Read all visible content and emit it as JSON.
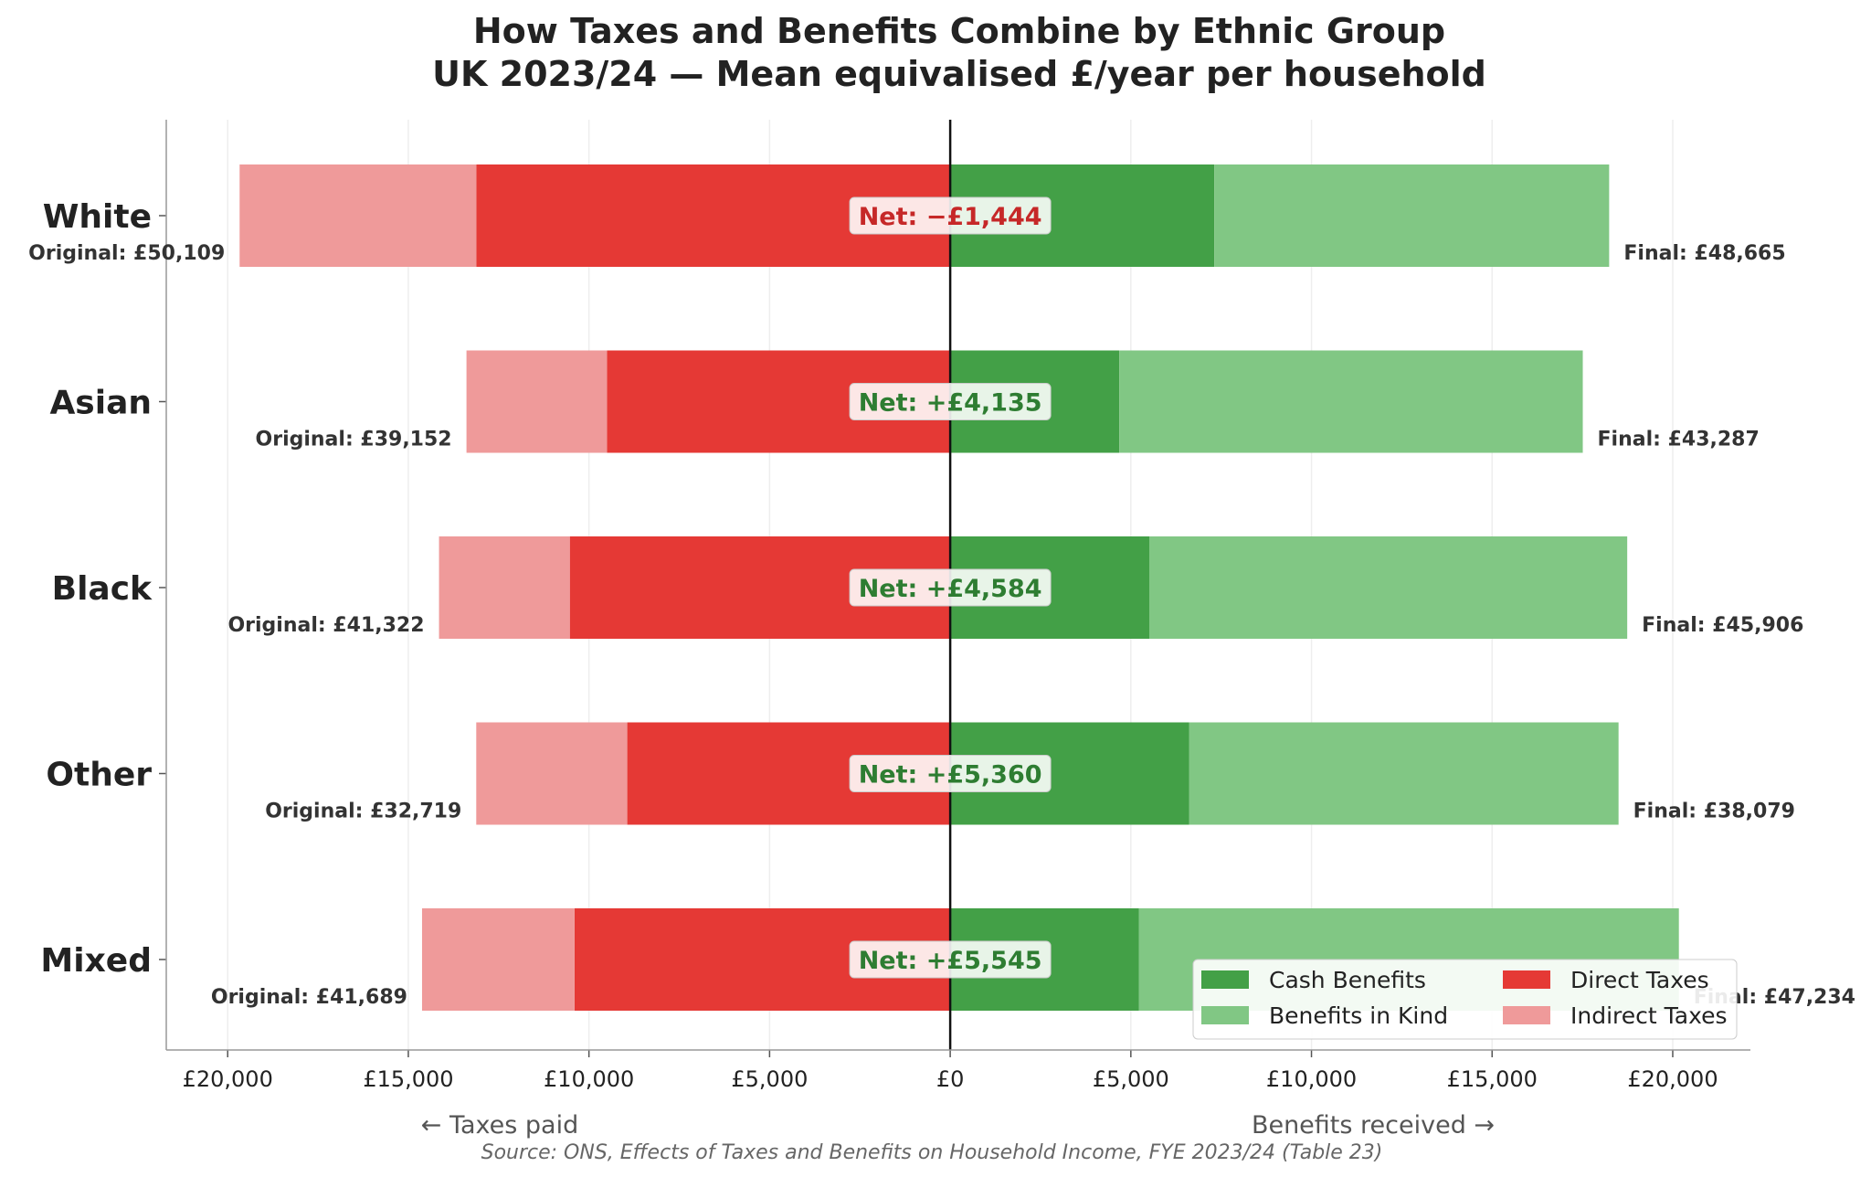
{
  "chart_data": {
    "type": "bar",
    "orientation": "horizontal-diverging-stacked",
    "title": "How Taxes and Benefits Combine by Ethnic Group",
    "subtitle": "UK 2023/24 — Mean equivalised £/year per household",
    "source": "Source: ONS, Effects of Taxes and Benefits on Household Income, FYE 2023/24 (Table 23)",
    "left_label": "← Taxes paid",
    "right_label": "Benefits received →",
    "xlim": [
      -21700,
      22150
    ],
    "xticks": [
      -20000,
      -15000,
      -10000,
      -5000,
      0,
      5000,
      10000,
      15000,
      20000
    ],
    "xtick_labels": [
      "£20,000",
      "£15,000",
      "£10,000",
      "£5,000",
      "£0",
      "£5,000",
      "£10,000",
      "£15,000",
      "£20,000"
    ],
    "grid": "vertical",
    "legend_placement": "lower-right",
    "categories": [
      "White",
      "Asian",
      "Black",
      "Other",
      "Mixed"
    ],
    "series": [
      {
        "name": "Cash Benefits",
        "color": "#43a047",
        "values": [
          7310,
          4680,
          5510,
          6610,
          5220
        ]
      },
      {
        "name": "Benefits in Kind",
        "color": "#81c784",
        "values": [
          10930,
          12830,
          13230,
          11890,
          14950
        ]
      },
      {
        "name": "Direct Taxes",
        "color": "#e53935",
        "values": [
          -13120,
          -9500,
          -10530,
          -8940,
          -10400
        ]
      },
      {
        "name": "Indirect Taxes",
        "color": "#ef9a9a",
        "values": [
          -6550,
          -3890,
          -3620,
          -4180,
          -4220
        ]
      }
    ],
    "net_labels": [
      "Net: −£1,444",
      "Net: +£4,135",
      "Net: +£4,584",
      "Net: +£5,360",
      "Net: +£5,545"
    ],
    "net_values": [
      -1444,
      4135,
      4584,
      5360,
      5545
    ],
    "original_labels": [
      "Original: £50,109",
      "Original: £39,152",
      "Original: £41,322",
      "Original: £32,719",
      "Original: £41,689"
    ],
    "final_labels": [
      "Final: £48,665",
      "Final: £43,287",
      "Final: £45,906",
      "Final: £38,079",
      "Final: £47,234"
    ],
    "colors": {
      "net_positive": "#2e7d32",
      "net_negative": "#c62828"
    }
  }
}
